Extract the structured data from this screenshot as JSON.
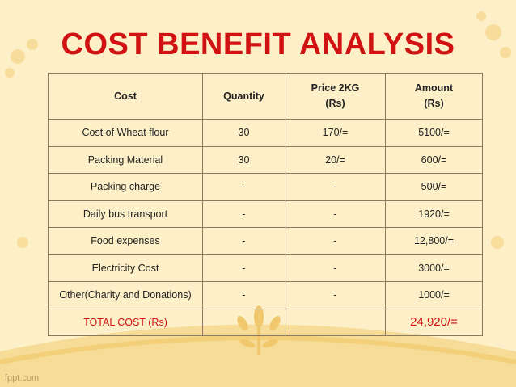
{
  "title": "COST BENEFIT ANALYSIS",
  "table": {
    "headers": [
      "Cost",
      "Quantity",
      "Price 2KG\n(Rs)",
      "Amount\n(Rs)"
    ],
    "rows": [
      [
        "Cost of Wheat flour",
        "30",
        "170/=",
        "5100/="
      ],
      [
        "Packing Material",
        "30",
        "20/=",
        "600/="
      ],
      [
        "Packing charge",
        "-",
        "-",
        "500/="
      ],
      [
        "Daily bus transport",
        "-",
        "-",
        "1920/="
      ],
      [
        "Food expenses",
        "-",
        "-",
        "12,800/="
      ],
      [
        "Electricity Cost",
        "-",
        "-",
        "3000/="
      ],
      [
        "Other(Charity and Donations)",
        "-",
        "-",
        "1000/="
      ]
    ],
    "total": {
      "label": "TOTAL COST (Rs)",
      "amount": "24,920/="
    }
  },
  "footer": {
    "brand": "fppt.com"
  },
  "colors": {
    "title": "#d01212",
    "background": "#fdf0c8",
    "decoration": "#f7d98e"
  }
}
